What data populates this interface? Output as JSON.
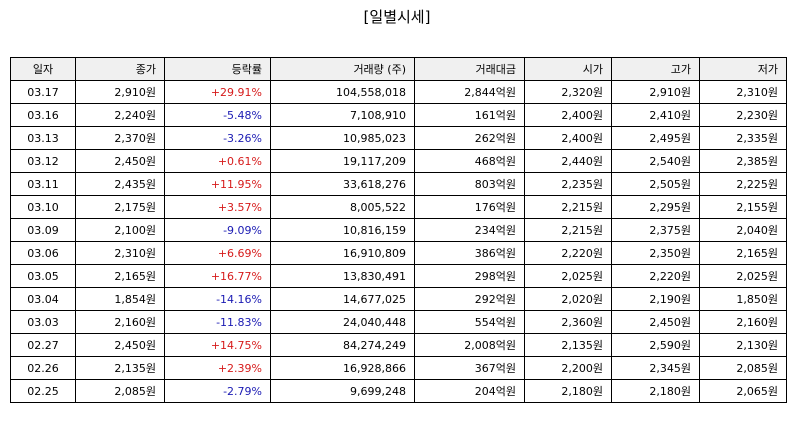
{
  "title": "[일별시세]",
  "colors": {
    "up": "#d61a1a",
    "down": "#1a1ab3",
    "header_bg": "#f0f0f0"
  },
  "columns": [
    "일자",
    "종가",
    "등락률",
    "거래량 (주)",
    "거래대금",
    "시가",
    "고가",
    "저가"
  ],
  "rows": [
    {
      "date": "03.17",
      "close": "2,910원",
      "change": "+29.91%",
      "dir": "up",
      "volume": "104,558,018",
      "amount": "2,844억원",
      "open": "2,320원",
      "high": "2,910원",
      "low": "2,310원"
    },
    {
      "date": "03.16",
      "close": "2,240원",
      "change": "-5.48%",
      "dir": "down",
      "volume": "7,108,910",
      "amount": "161억원",
      "open": "2,400원",
      "high": "2,410원",
      "low": "2,230원"
    },
    {
      "date": "03.13",
      "close": "2,370원",
      "change": "-3.26%",
      "dir": "down",
      "volume": "10,985,023",
      "amount": "262억원",
      "open": "2,400원",
      "high": "2,495원",
      "low": "2,335원"
    },
    {
      "date": "03.12",
      "close": "2,450원",
      "change": "+0.61%",
      "dir": "up",
      "volume": "19,117,209",
      "amount": "468억원",
      "open": "2,440원",
      "high": "2,540원",
      "low": "2,385원"
    },
    {
      "date": "03.11",
      "close": "2,435원",
      "change": "+11.95%",
      "dir": "up",
      "volume": "33,618,276",
      "amount": "803억원",
      "open": "2,235원",
      "high": "2,505원",
      "low": "2,225원"
    },
    {
      "date": "03.10",
      "close": "2,175원",
      "change": "+3.57%",
      "dir": "up",
      "volume": "8,005,522",
      "amount": "176억원",
      "open": "2,215원",
      "high": "2,295원",
      "low": "2,155원"
    },
    {
      "date": "03.09",
      "close": "2,100원",
      "change": "-9.09%",
      "dir": "down",
      "volume": "10,816,159",
      "amount": "234억원",
      "open": "2,215원",
      "high": "2,375원",
      "low": "2,040원"
    },
    {
      "date": "03.06",
      "close": "2,310원",
      "change": "+6.69%",
      "dir": "up",
      "volume": "16,910,809",
      "amount": "386억원",
      "open": "2,220원",
      "high": "2,350원",
      "low": "2,165원"
    },
    {
      "date": "03.05",
      "close": "2,165원",
      "change": "+16.77%",
      "dir": "up",
      "volume": "13,830,491",
      "amount": "298억원",
      "open": "2,025원",
      "high": "2,220원",
      "low": "2,025원"
    },
    {
      "date": "03.04",
      "close": "1,854원",
      "change": "-14.16%",
      "dir": "down",
      "volume": "14,677,025",
      "amount": "292억원",
      "open": "2,020원",
      "high": "2,190원",
      "low": "1,850원"
    },
    {
      "date": "03.03",
      "close": "2,160원",
      "change": "-11.83%",
      "dir": "down",
      "volume": "24,040,448",
      "amount": "554억원",
      "open": "2,360원",
      "high": "2,450원",
      "low": "2,160원"
    },
    {
      "date": "02.27",
      "close": "2,450원",
      "change": "+14.75%",
      "dir": "up",
      "volume": "84,274,249",
      "amount": "2,008억원",
      "open": "2,135원",
      "high": "2,590원",
      "low": "2,130원"
    },
    {
      "date": "02.26",
      "close": "2,135원",
      "change": "+2.39%",
      "dir": "up",
      "volume": "16,928,866",
      "amount": "367억원",
      "open": "2,200원",
      "high": "2,345원",
      "low": "2,085원"
    },
    {
      "date": "02.25",
      "close": "2,085원",
      "change": "-2.79%",
      "dir": "down",
      "volume": "9,699,248",
      "amount": "204억원",
      "open": "2,180원",
      "high": "2,180원",
      "low": "2,065원"
    }
  ]
}
